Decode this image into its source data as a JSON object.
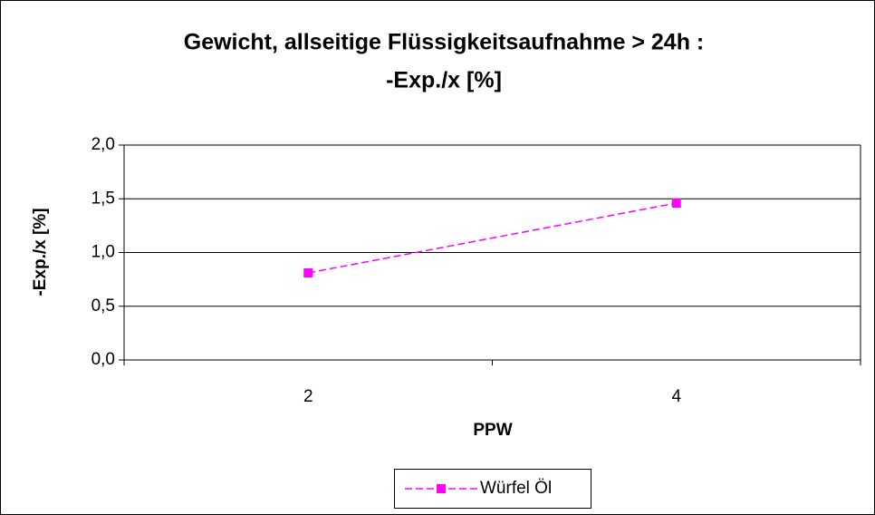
{
  "chart_data": {
    "type": "line",
    "title": [
      "Gewicht, allseitige Flüssigkeitsaufnahme > 24h :",
      "-Exp./x [%]"
    ],
    "x_label": "PPW",
    "y_label": "-Exp./x [%]",
    "categories": [
      "2",
      "4"
    ],
    "series": [
      {
        "name": "Würfel Öl",
        "color": "#ff00ff",
        "values": [
          0.81,
          1.46
        ]
      }
    ],
    "ylim": [
      0,
      2
    ],
    "yticks": [
      {
        "value": 0,
        "label": "0,0"
      },
      {
        "value": 0.5,
        "label": "0,5"
      },
      {
        "value": 1,
        "label": "1,0"
      },
      {
        "value": 1.5,
        "label": "1,5"
      },
      {
        "value": 2,
        "label": "2,0"
      }
    ],
    "grid": true,
    "legend": "bottom"
  }
}
